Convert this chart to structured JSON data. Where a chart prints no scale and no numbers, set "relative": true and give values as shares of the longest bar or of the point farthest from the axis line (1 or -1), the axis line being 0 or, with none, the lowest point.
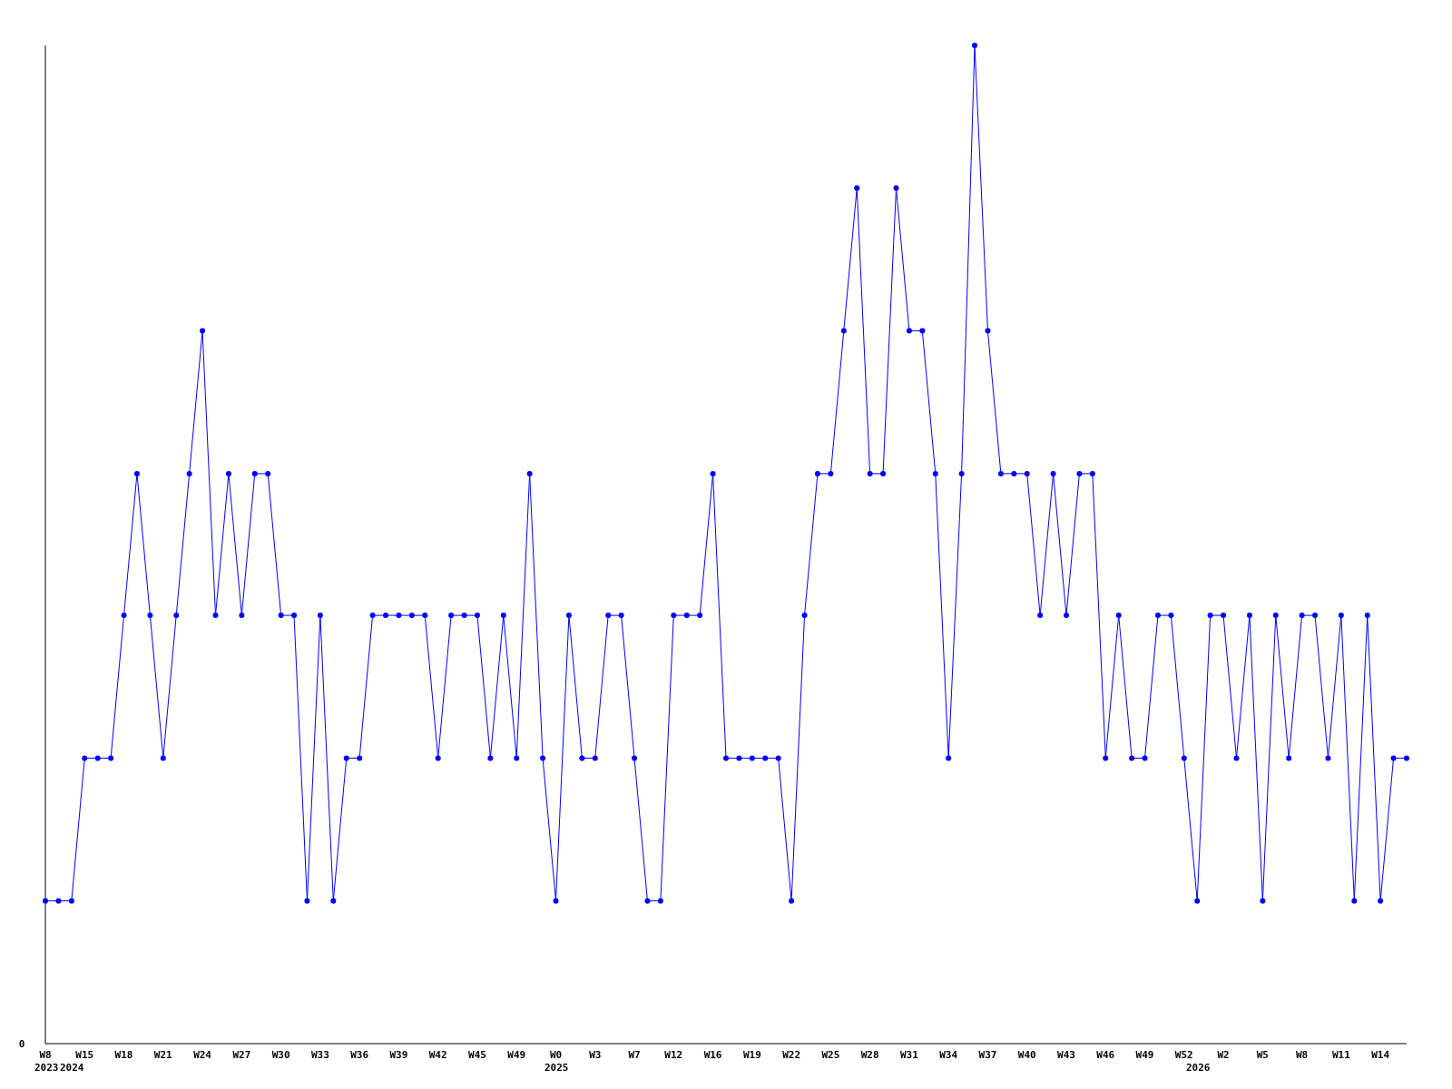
{
  "chart_data": {
    "type": "line",
    "relative": true,
    "marker": "circle",
    "categories": [
      "W8",
      null,
      null,
      "W15",
      null,
      null,
      "W18",
      null,
      null,
      "W21",
      null,
      null,
      "W24",
      null,
      null,
      "W27",
      null,
      null,
      "W30",
      null,
      null,
      "W33",
      null,
      null,
      "W36",
      null,
      null,
      "W39",
      null,
      null,
      "W42",
      null,
      null,
      "W45",
      null,
      null,
      "W49",
      null,
      null,
      "W0",
      null,
      null,
      "W3",
      null,
      null,
      "W7",
      null,
      null,
      "W12",
      null,
      null,
      "W16",
      null,
      null,
      "W19",
      null,
      null,
      "W22",
      null,
      null,
      "W25",
      null,
      null,
      "W28",
      null,
      null,
      "W31",
      null,
      null,
      "W34",
      null,
      null,
      "W37",
      null,
      null,
      "W40",
      null,
      null,
      "W43",
      null,
      null,
      "W46",
      null,
      null,
      "W49",
      null,
      null,
      "W52",
      null,
      null,
      "W2",
      null,
      null,
      "W5",
      null,
      null,
      "W8",
      null,
      null,
      "W11",
      null,
      null,
      "W14",
      null,
      null
    ],
    "series": [
      {
        "color": "#0000ff",
        "values": [
          0.143,
          0.143,
          0.143,
          0.286,
          0.286,
          0.286,
          0.429,
          0.571,
          0.429,
          0.286,
          0.429,
          0.571,
          0.714,
          0.429,
          0.571,
          0.429,
          0.571,
          0.571,
          0.429,
          0.429,
          0.143,
          0.429,
          0.143,
          0.286,
          0.286,
          0.429,
          0.429,
          0.429,
          0.429,
          0.429,
          0.286,
          0.429,
          0.429,
          0.429,
          0.286,
          0.429,
          0.286,
          0.571,
          0.286,
          0.143,
          0.429,
          0.286,
          0.286,
          0.429,
          0.429,
          0.286,
          0.143,
          0.143,
          0.429,
          0.429,
          0.429,
          0.571,
          0.286,
          0.286,
          0.286,
          0.286,
          0.286,
          0.143,
          0.429,
          0.571,
          0.571,
          0.714,
          0.857,
          0.571,
          0.571,
          0.857,
          0.714,
          0.714,
          0.571,
          0.286,
          0.571,
          1,
          0.714,
          0.571,
          0.571,
          0.571,
          0.429,
          0.571,
          0.429,
          0.571,
          0.571,
          0.286,
          0.429,
          0.286,
          0.286,
          0.429,
          0.429,
          0.286,
          0.143,
          0.429,
          0.429,
          0.286,
          0.429,
          0.143,
          0.429,
          0.286,
          0.429,
          0.429,
          0.286,
          0.429,
          0.143,
          0.429,
          0.143,
          0.286,
          0.286
        ]
      }
    ],
    "annotations": [
      "0",
      "2023",
      "2024",
      "2025",
      "2026"
    ]
  }
}
